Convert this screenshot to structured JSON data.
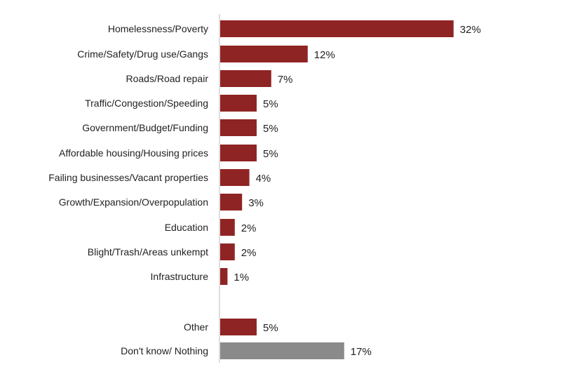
{
  "chart_data": {
    "type": "bar",
    "orientation": "horizontal",
    "categories": [
      "Homelessness/Poverty",
      "Crime/Safety/Drug use/Gangs",
      "Roads/Road repair",
      "Traffic/Congestion/Speeding",
      "Government/Budget/Funding",
      "Affordable housing/Housing prices",
      "Failing businesses/Vacant properties",
      "Growth/Expansion/Overpopulation",
      "Education",
      "Blight/Trash/Areas unkempt",
      "Infrastructure",
      "Other",
      "Don't know/ Nothing"
    ],
    "values": [
      32,
      12,
      7,
      5,
      5,
      5,
      4,
      3,
      2,
      2,
      1,
      5,
      17
    ],
    "value_labels": [
      "32%",
      "12%",
      "7%",
      "5%",
      "5%",
      "5%",
      "4%",
      "3%",
      "2%",
      "2%",
      "1%",
      "5%",
      "17%"
    ],
    "bar_colors": [
      "#8f2424",
      "#8f2424",
      "#8f2424",
      "#8f2424",
      "#8f2424",
      "#8f2424",
      "#8f2424",
      "#8f2424",
      "#8f2424",
      "#8f2424",
      "#8f2424",
      "#8f2424",
      "#8a8a8a"
    ],
    "title": "",
    "xlabel": "",
    "ylabel": "",
    "grid": false,
    "legend": "none"
  }
}
